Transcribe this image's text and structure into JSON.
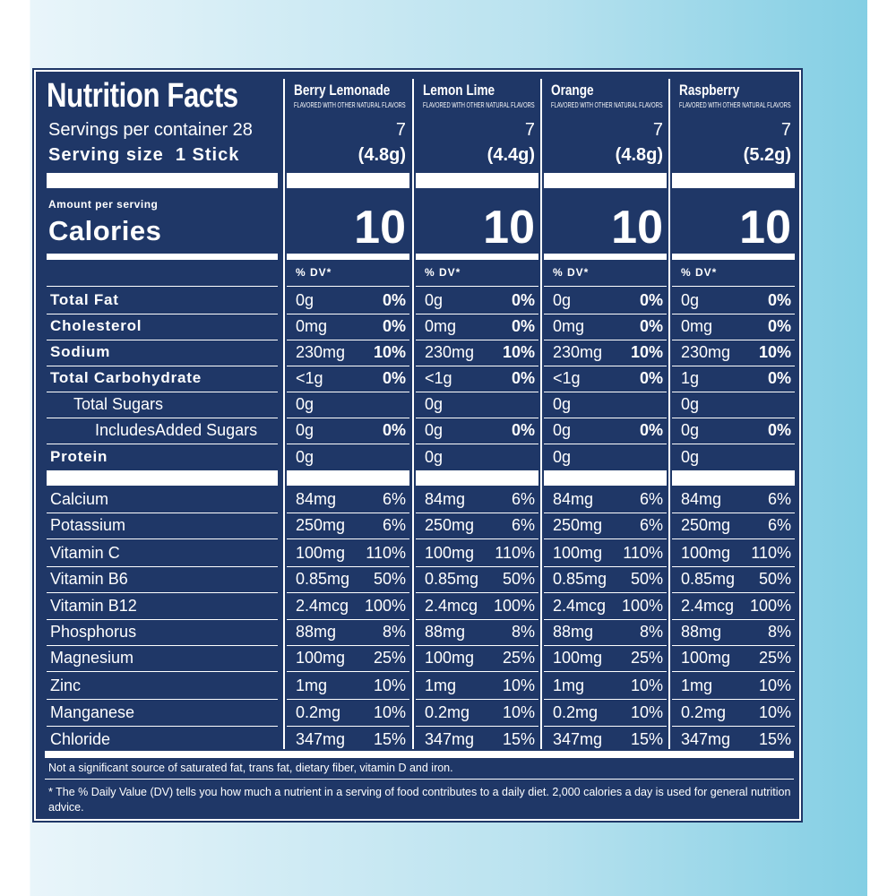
{
  "header": {
    "title": "Nutrition Facts",
    "servings": "Servings per container 28",
    "serving_size": "Serving size  1 Stick",
    "amount_per_serving": "Amount per serving",
    "calories_label": "Calories"
  },
  "nutrients": [
    {
      "name": "Total Fat",
      "bold": true
    },
    {
      "name": "Cholesterol",
      "bold": true
    },
    {
      "name": "Sodium",
      "bold": true
    },
    {
      "name": "Total Carbohydrate",
      "bold": true
    },
    {
      "name": "Total Sugars",
      "indent": 1
    },
    {
      "name": "IncludesAdded Sugars",
      "indent": 2
    },
    {
      "name": "Protein",
      "bold": true
    },
    {
      "name": "Calcium"
    },
    {
      "name": "Potassium"
    },
    {
      "name": "Vitamin C"
    },
    {
      "name": "Vitamin B6"
    },
    {
      "name": "Vitamin B12"
    },
    {
      "name": "Phosphorus"
    },
    {
      "name": "Magnesium"
    },
    {
      "name": "Zinc"
    },
    {
      "name": "Manganese"
    },
    {
      "name": "Chloride"
    }
  ],
  "flavors": [
    {
      "name": "Berry Lemonade",
      "note": "FLAVORED WITH OTHER NATURAL FLAVORS",
      "servings": "7",
      "serving_size": "(4.8g)",
      "calories": "10",
      "dv_header": "% DV*",
      "rows": [
        {
          "amount": "0g",
          "dv": "0%"
        },
        {
          "amount": "0mg",
          "dv": "0%"
        },
        {
          "amount": "230mg",
          "dv": "10%"
        },
        {
          "amount": "<1g",
          "dv": "0%"
        },
        {
          "amount": "0g"
        },
        {
          "amount": "0g",
          "dv": "0%"
        },
        {
          "amount": "0g"
        },
        {
          "amount": "84mg",
          "dv": "6%"
        },
        {
          "amount": "250mg",
          "dv": "6%"
        },
        {
          "amount": "100mg",
          "dv": "110%"
        },
        {
          "amount": "0.85mg",
          "dv": "50%"
        },
        {
          "amount": "2.4mcg",
          "dv": "100%"
        },
        {
          "amount": "88mg",
          "dv": "8%"
        },
        {
          "amount": "100mg",
          "dv": "25%"
        },
        {
          "amount": "1mg",
          "dv": "10%"
        },
        {
          "amount": "0.2mg",
          "dv": "10%"
        },
        {
          "amount": "347mg",
          "dv": "15%"
        }
      ]
    },
    {
      "name": "Lemon Lime",
      "note": "FLAVORED WITH OTHER NATURAL FLAVORS",
      "servings": "7",
      "serving_size": "(4.4g)",
      "calories": "10",
      "dv_header": "% DV*",
      "rows": [
        {
          "amount": "0g",
          "dv": "0%"
        },
        {
          "amount": "0mg",
          "dv": "0%"
        },
        {
          "amount": "230mg",
          "dv": "10%"
        },
        {
          "amount": "<1g",
          "dv": "0%"
        },
        {
          "amount": "0g"
        },
        {
          "amount": "0g",
          "dv": "0%"
        },
        {
          "amount": "0g"
        },
        {
          "amount": "84mg",
          "dv": "6%"
        },
        {
          "amount": "250mg",
          "dv": "6%"
        },
        {
          "amount": "100mg",
          "dv": "110%"
        },
        {
          "amount": "0.85mg",
          "dv": "50%"
        },
        {
          "amount": "2.4mcg",
          "dv": "100%"
        },
        {
          "amount": "88mg",
          "dv": "8%"
        },
        {
          "amount": "100mg",
          "dv": "25%"
        },
        {
          "amount": "1mg",
          "dv": "10%"
        },
        {
          "amount": "0.2mg",
          "dv": "10%"
        },
        {
          "amount": "347mg",
          "dv": "15%"
        }
      ]
    },
    {
      "name": "Orange",
      "note": "FLAVORED WITH OTHER NATURAL FLAVORS",
      "servings": "7",
      "serving_size": "(4.8g)",
      "calories": "10",
      "dv_header": "% DV*",
      "rows": [
        {
          "amount": "0g",
          "dv": "0%"
        },
        {
          "amount": "0mg",
          "dv": "0%"
        },
        {
          "amount": "230mg",
          "dv": "10%"
        },
        {
          "amount": "<1g",
          "dv": "0%"
        },
        {
          "amount": "0g"
        },
        {
          "amount": "0g",
          "dv": "0%"
        },
        {
          "amount": "0g"
        },
        {
          "amount": "84mg",
          "dv": "6%"
        },
        {
          "amount": "250mg",
          "dv": "6%"
        },
        {
          "amount": "100mg",
          "dv": "110%"
        },
        {
          "amount": "0.85mg",
          "dv": "50%"
        },
        {
          "amount": "2.4mcg",
          "dv": "100%"
        },
        {
          "amount": "88mg",
          "dv": "8%"
        },
        {
          "amount": "100mg",
          "dv": "25%"
        },
        {
          "amount": "1mg",
          "dv": "10%"
        },
        {
          "amount": "0.2mg",
          "dv": "10%"
        },
        {
          "amount": "347mg",
          "dv": "15%"
        }
      ]
    },
    {
      "name": "Raspberry",
      "note": "FLAVORED WITH OTHER NATURAL FLAVORS",
      "servings": "7",
      "serving_size": "(5.2g)",
      "calories": "10",
      "dv_header": "% DV*",
      "rows": [
        {
          "amount": "0g",
          "dv": "0%"
        },
        {
          "amount": "0mg",
          "dv": "0%"
        },
        {
          "amount": "230mg",
          "dv": "10%"
        },
        {
          "amount": "1g",
          "dv": "0%"
        },
        {
          "amount": "0g"
        },
        {
          "amount": "0g",
          "dv": "0%"
        },
        {
          "amount": "0g"
        },
        {
          "amount": "84mg",
          "dv": "6%"
        },
        {
          "amount": "250mg",
          "dv": "6%"
        },
        {
          "amount": "100mg",
          "dv": "110%"
        },
        {
          "amount": "0.85mg",
          "dv": "50%"
        },
        {
          "amount": "2.4mcg",
          "dv": "100%"
        },
        {
          "amount": "88mg",
          "dv": "8%"
        },
        {
          "amount": "100mg",
          "dv": "25%"
        },
        {
          "amount": "1mg",
          "dv": "10%"
        },
        {
          "amount": "0.2mg",
          "dv": "10%"
        },
        {
          "amount": "347mg",
          "dv": "15%"
        }
      ]
    }
  ],
  "footnotes": [
    "Not a significant source of saturated fat, trans fat, dietary fiber, vitamin D and iron.",
    "* The % Daily Value (DV) tells you how much a nutrient in a serving of food contributes to a daily diet. 2,000 calories a day is used for general nutrition advice."
  ]
}
